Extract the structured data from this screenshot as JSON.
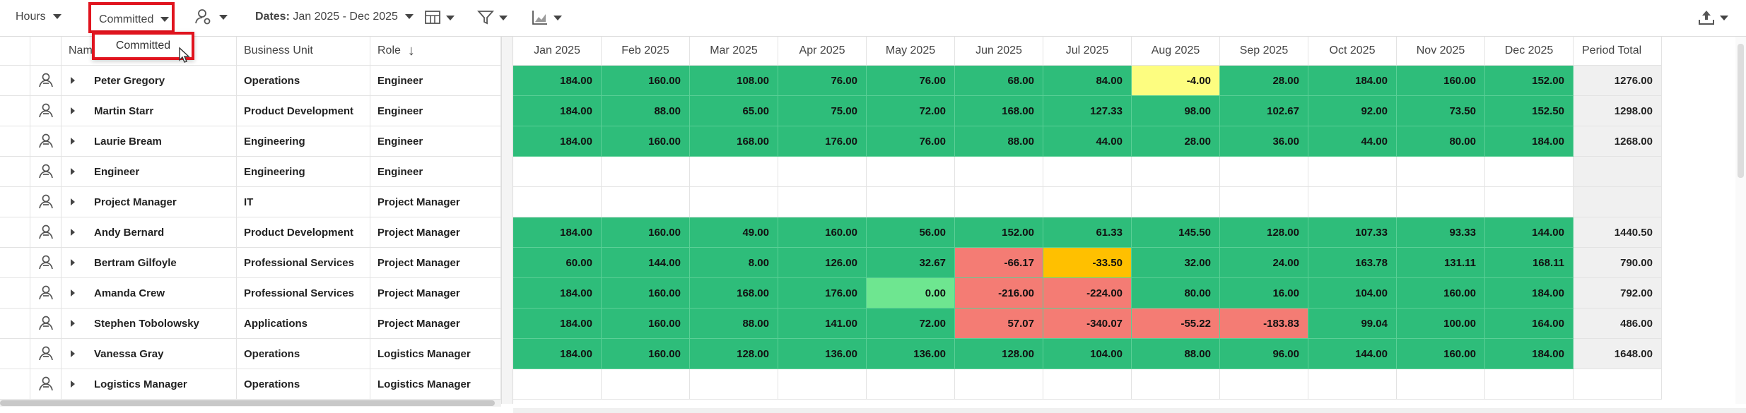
{
  "toolbar": {
    "hours": "Hours",
    "committed": "Committed",
    "dates_label": "Dates:",
    "dates_value": "Jan 2025 - Dec 2025"
  },
  "dropdown": {
    "option": "Committed"
  },
  "table": {
    "columns": {
      "name": "Name",
      "business_unit": "Business Unit",
      "role": "Role"
    },
    "months": [
      "Jan 2025",
      "Feb 2025",
      "Mar 2025",
      "Apr 2025",
      "May 2025",
      "Jun 2025",
      "Jul 2025",
      "Aug 2025",
      "Sep 2025",
      "Oct 2025",
      "Nov 2025",
      "Dec 2025"
    ],
    "total_label": "Period Total",
    "rows": [
      {
        "name": "Peter Gregory",
        "business_unit": "Operations",
        "role": "Engineer",
        "values": [
          "184.00",
          "160.00",
          "108.00",
          "76.00",
          "76.00",
          "68.00",
          "84.00",
          "-4.00",
          "28.00",
          "184.00",
          "160.00",
          "152.00"
        ],
        "colors": [
          "#2ebd7a",
          "#2ebd7a",
          "#2ebd7a",
          "#2ebd7a",
          "#2ebd7a",
          "#2ebd7a",
          "#2ebd7a",
          "#fdfd80",
          "#2ebd7a",
          "#2ebd7a",
          "#2ebd7a",
          "#2ebd7a"
        ],
        "total": "1276.00"
      },
      {
        "name": "Martin Starr",
        "business_unit": "Product Development",
        "role": "Engineer",
        "values": [
          "184.00",
          "88.00",
          "65.00",
          "75.00",
          "72.00",
          "168.00",
          "127.33",
          "98.00",
          "102.67",
          "92.00",
          "73.50",
          "152.50"
        ],
        "colors": [
          "#2ebd7a",
          "#2ebd7a",
          "#2ebd7a",
          "#2ebd7a",
          "#2ebd7a",
          "#2ebd7a",
          "#2ebd7a",
          "#2ebd7a",
          "#2ebd7a",
          "#2ebd7a",
          "#2ebd7a",
          "#2ebd7a"
        ],
        "total": "1298.00"
      },
      {
        "name": "Laurie Bream",
        "business_unit": "Engineering",
        "role": "Engineer",
        "values": [
          "184.00",
          "160.00",
          "168.00",
          "176.00",
          "76.00",
          "88.00",
          "44.00",
          "28.00",
          "36.00",
          "44.00",
          "80.00",
          "184.00"
        ],
        "colors": [
          "#2ebd7a",
          "#2ebd7a",
          "#2ebd7a",
          "#2ebd7a",
          "#2ebd7a",
          "#2ebd7a",
          "#2ebd7a",
          "#2ebd7a",
          "#2ebd7a",
          "#2ebd7a",
          "#2ebd7a",
          "#2ebd7a"
        ],
        "total": "1268.00"
      },
      {
        "name": "Engineer",
        "business_unit": "Engineering",
        "role": "Engineer"
      },
      {
        "name": "Project Manager",
        "business_unit": "IT",
        "role": "Project Manager"
      },
      {
        "name": "Andy Bernard",
        "business_unit": "Product Development",
        "role": "Project Manager",
        "values": [
          "184.00",
          "160.00",
          "49.00",
          "160.00",
          "56.00",
          "152.00",
          "61.33",
          "145.50",
          "128.00",
          "107.33",
          "93.33",
          "144.00"
        ],
        "colors": [
          "#2ebd7a",
          "#2ebd7a",
          "#2ebd7a",
          "#2ebd7a",
          "#2ebd7a",
          "#2ebd7a",
          "#2ebd7a",
          "#2ebd7a",
          "#2ebd7a",
          "#2ebd7a",
          "#2ebd7a",
          "#2ebd7a"
        ],
        "total": "1440.50"
      },
      {
        "name": "Bertram Gilfoyle",
        "business_unit": "Professional Services",
        "role": "Project Manager",
        "values": [
          "60.00",
          "144.00",
          "8.00",
          "126.00",
          "32.67",
          "-66.17",
          "-33.50",
          "32.00",
          "24.00",
          "163.78",
          "131.11",
          "168.11"
        ],
        "colors": [
          "#2ebd7a",
          "#2ebd7a",
          "#2ebd7a",
          "#2ebd7a",
          "#2ebd7a",
          "#f47c74",
          "#ffc000",
          "#2ebd7a",
          "#2ebd7a",
          "#2ebd7a",
          "#2ebd7a",
          "#2ebd7a"
        ],
        "total": "790.00"
      },
      {
        "name": "Amanda Crew",
        "business_unit": "Professional Services",
        "role": "Project Manager",
        "values": [
          "184.00",
          "160.00",
          "168.00",
          "176.00",
          "0.00",
          "-216.00",
          "-224.00",
          "80.00",
          "16.00",
          "104.00",
          "160.00",
          "184.00"
        ],
        "colors": [
          "#2ebd7a",
          "#2ebd7a",
          "#2ebd7a",
          "#2ebd7a",
          "#6ee690",
          "#f47c74",
          "#f47c74",
          "#2ebd7a",
          "#2ebd7a",
          "#2ebd7a",
          "#2ebd7a",
          "#2ebd7a"
        ],
        "total": "792.00"
      },
      {
        "name": "Stephen Tobolowsky",
        "business_unit": "Applications",
        "role": "Project Manager",
        "values": [
          "184.00",
          "160.00",
          "88.00",
          "141.00",
          "72.00",
          "57.07",
          "-340.07",
          "-55.22",
          "-183.83",
          "99.04",
          "100.00",
          "164.00"
        ],
        "colors": [
          "#2ebd7a",
          "#2ebd7a",
          "#2ebd7a",
          "#2ebd7a",
          "#2ebd7a",
          "#f47c74",
          "#f47c74",
          "#f47c74",
          "#f47c74",
          "#2ebd7a",
          "#2ebd7a",
          "#2ebd7a"
        ],
        "total": "486.00"
      },
      {
        "name": "Vanessa Gray",
        "business_unit": "Operations",
        "role": "Logistics Manager",
        "values": [
          "184.00",
          "160.00",
          "128.00",
          "136.00",
          "136.00",
          "128.00",
          "104.00",
          "88.00",
          "96.00",
          "144.00",
          "160.00",
          "184.00"
        ],
        "colors": [
          "#2ebd7a",
          "#2ebd7a",
          "#2ebd7a",
          "#2ebd7a",
          "#2ebd7a",
          "#2ebd7a",
          "#2ebd7a",
          "#2ebd7a",
          "#2ebd7a",
          "#2ebd7a",
          "#2ebd7a",
          "#2ebd7a"
        ],
        "total": "1648.00"
      },
      {
        "name": "Logistics Manager",
        "business_unit": "Operations",
        "role": "Logistics Manager"
      }
    ]
  }
}
